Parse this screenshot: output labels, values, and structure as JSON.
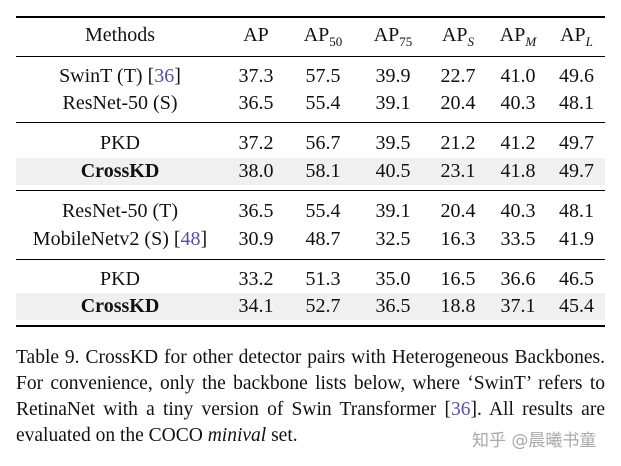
{
  "table": {
    "headers": [
      {
        "main": "Methods",
        "sub": ""
      },
      {
        "main": "AP",
        "sub": ""
      },
      {
        "main": "AP",
        "sub": "50"
      },
      {
        "main": "AP",
        "sub": "75"
      },
      {
        "main": "AP",
        "sub": "S"
      },
      {
        "main": "AP",
        "sub": "M"
      },
      {
        "main": "AP",
        "sub": "L"
      }
    ],
    "groups": [
      {
        "rows": [
          {
            "name": "SwinT (T) [",
            "cite": "36",
            "close": "]",
            "values": [
              "37.3",
              "57.5",
              "39.9",
              "22.7",
              "41.0",
              "49.6"
            ]
          },
          {
            "name": "ResNet-50 (S)",
            "cite": "",
            "close": "",
            "values": [
              "36.5",
              "55.4",
              "39.1",
              "20.4",
              "40.3",
              "48.1"
            ]
          }
        ]
      },
      {
        "rows": [
          {
            "name": "PKD",
            "cite": "",
            "close": "",
            "values": [
              "37.2",
              "56.7",
              "39.5",
              "21.2",
              "41.2",
              "49.7"
            ]
          },
          {
            "name": "CrossKD",
            "cite": "",
            "close": "",
            "values": [
              "38.0",
              "58.1",
              "40.5",
              "23.1",
              "41.8",
              "49.7"
            ]
          }
        ]
      },
      {
        "rows": [
          {
            "name": "ResNet-50 (T)",
            "cite": "",
            "close": "",
            "values": [
              "36.5",
              "55.4",
              "39.1",
              "20.4",
              "40.3",
              "48.1"
            ]
          },
          {
            "name": "MobileNetv2 (S) [",
            "cite": "48",
            "close": "]",
            "values": [
              "30.9",
              "48.7",
              "32.5",
              "16.3",
              "33.5",
              "41.9"
            ]
          }
        ]
      },
      {
        "rows": [
          {
            "name": "PKD",
            "cite": "",
            "close": "",
            "values": [
              "33.2",
              "51.3",
              "35.0",
              "16.5",
              "36.6",
              "46.5"
            ]
          },
          {
            "name": "CrossKD",
            "cite": "",
            "close": "",
            "values": [
              "34.1",
              "52.7",
              "36.5",
              "18.8",
              "37.1",
              "45.4"
            ]
          }
        ]
      }
    ]
  },
  "caption": {
    "part1": "Table 9. CrossKD for other detector pairs with Heterogeneous Backbones. For convenience, only the backbone lists below, where ‘SwinT’ refers to RetinaNet with a tiny version of Swin Transformer [",
    "cite": "36",
    "part2": "]. All results are evaluated on the COCO ",
    "italic": "minival",
    "part3": " set."
  },
  "watermark": "知乎 @晨曦书童",
  "colors": {
    "shade": "#f0f0f0",
    "cite": "#5a4fa8"
  }
}
